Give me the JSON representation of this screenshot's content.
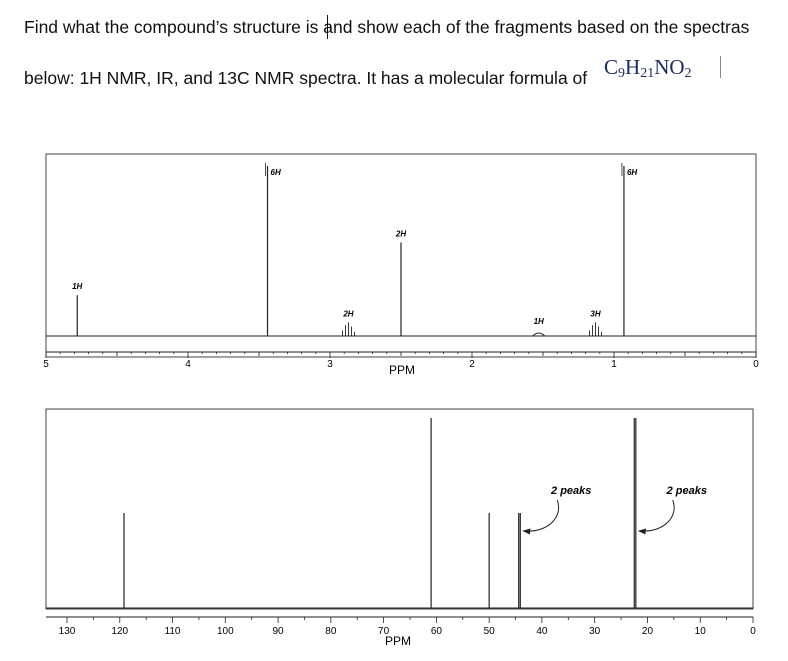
{
  "question": {
    "line1": "Find what the compound’s structure is and show  each of the fragments based on the spectras",
    "line2": "below: 1H NMR, IR, and 13C NMR spectra. It has a molecular formula of",
    "formula_prefix": "C",
    "formula_c": "9",
    "formula_h_label": "H",
    "formula_h": "21",
    "formula_n": "N",
    "formula_o": "O",
    "formula_o_count": "2"
  },
  "chart_data": [
    {
      "type": "line",
      "title": "",
      "xlabel": "PPM",
      "ylabel": "",
      "xlim": [
        5,
        0
      ],
      "x_ticks": [
        "5",
        "4",
        "3",
        "2",
        "1",
        "0"
      ],
      "grid": false,
      "peaks": [
        {
          "ppm": 4.78,
          "height": 0.24,
          "label": "1H",
          "shape": "singlet"
        },
        {
          "ppm": 3.44,
          "height": 1.0,
          "label": "6H",
          "shape": "singlet"
        },
        {
          "ppm": 2.87,
          "height": 0.08,
          "label": "2H",
          "shape": "multiplet"
        },
        {
          "ppm": 2.5,
          "height": 0.55,
          "label": "2H",
          "shape": "singlet"
        },
        {
          "ppm": 1.53,
          "height": 0.02,
          "label": "1H",
          "shape": "broad"
        },
        {
          "ppm": 1.13,
          "height": 0.08,
          "label": "3H",
          "shape": "multiplet"
        },
        {
          "ppm": 0.93,
          "height": 1.0,
          "label": "6H",
          "shape": "singlet"
        }
      ],
      "integration_steps": [
        {
          "ppm": 3.44,
          "label": "6H"
        },
        {
          "ppm": 0.93,
          "label": "6H"
        }
      ]
    },
    {
      "type": "bar",
      "title": "",
      "xlabel": "PPM",
      "ylabel": "",
      "xlim": [
        130,
        0
      ],
      "x_ticks": [
        "130",
        "120",
        "110",
        "100",
        "90",
        "80",
        "70",
        "60",
        "50",
        "40",
        "30",
        "20",
        "10",
        "0"
      ],
      "grid": false,
      "peaks": [
        {
          "ppm": 119.2,
          "height": 0.5
        },
        {
          "ppm": 61.0,
          "height": 1.0
        },
        {
          "ppm": 50.0,
          "height": 0.5
        },
        {
          "ppm": 44.4,
          "height": 0.5
        },
        {
          "ppm": 44.1,
          "height": 0.5
        },
        {
          "ppm": 22.5,
          "height": 1.0
        },
        {
          "ppm": 22.2,
          "height": 1.0
        }
      ],
      "annotations": [
        {
          "text": "2 peaks",
          "ppm": 44.3
        },
        {
          "text": "2 peaks",
          "ppm": 22.4
        }
      ]
    }
  ]
}
